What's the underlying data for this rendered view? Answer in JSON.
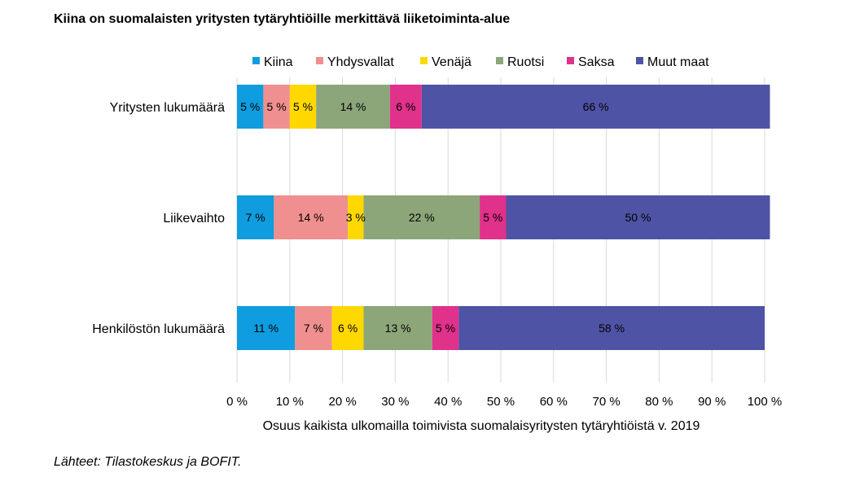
{
  "title": "Kiina on suomalaisten yritysten tytäryhtiöille merkittävä liiketoiminta-alue",
  "source": "Lähteet: Tilastokeskus ja BOFIT.",
  "chart_data": {
    "type": "bar",
    "orientation": "horizontal",
    "stacked": true,
    "categories": [
      "Yritysten lukumäärä",
      "Liikevaihto",
      "Henkilöstön lukumäärä"
    ],
    "series": [
      {
        "name": "Kiina",
        "color": "#0f9ddf",
        "values": [
          5,
          7,
          11
        ],
        "labels": [
          "5 %",
          "7 %",
          "11 %"
        ]
      },
      {
        "name": "Yhdysvallat",
        "color": "#f08f8f",
        "values": [
          5,
          14,
          7
        ],
        "labels": [
          "5 %",
          "14 %",
          "7 %"
        ]
      },
      {
        "name": "Venäjä",
        "color": "#ffd800",
        "values": [
          5,
          3,
          6
        ],
        "labels": [
          "5 %",
          "3 %",
          "6 %"
        ]
      },
      {
        "name": "Ruotsi",
        "color": "#8ca67a",
        "values": [
          14,
          22,
          13
        ],
        "labels": [
          "14 %",
          "22 %",
          "13 %"
        ]
      },
      {
        "name": "Saksa",
        "color": "#e0318b",
        "values": [
          6,
          5,
          5
        ],
        "labels": [
          "6 %",
          "5 %",
          "5 %"
        ]
      },
      {
        "name": "Muut maat",
        "color": "#4f53a5",
        "values": [
          66,
          50,
          58
        ],
        "labels": [
          "66 %",
          "50 %",
          "58 %"
        ]
      }
    ],
    "xlim": [
      0,
      100
    ],
    "xticks": [
      "0 %",
      "10 %",
      "20 %",
      "30 %",
      "40 %",
      "50 %",
      "60 %",
      "70 %",
      "80 %",
      "90 %",
      "100 %"
    ],
    "xlabel": "Osuus kaikista ulkomailla  toimivista suomalaisyritysten tytäryhtiöistä v. 2019",
    "ylabel": "",
    "grid": "vertical",
    "legend": "top"
  }
}
